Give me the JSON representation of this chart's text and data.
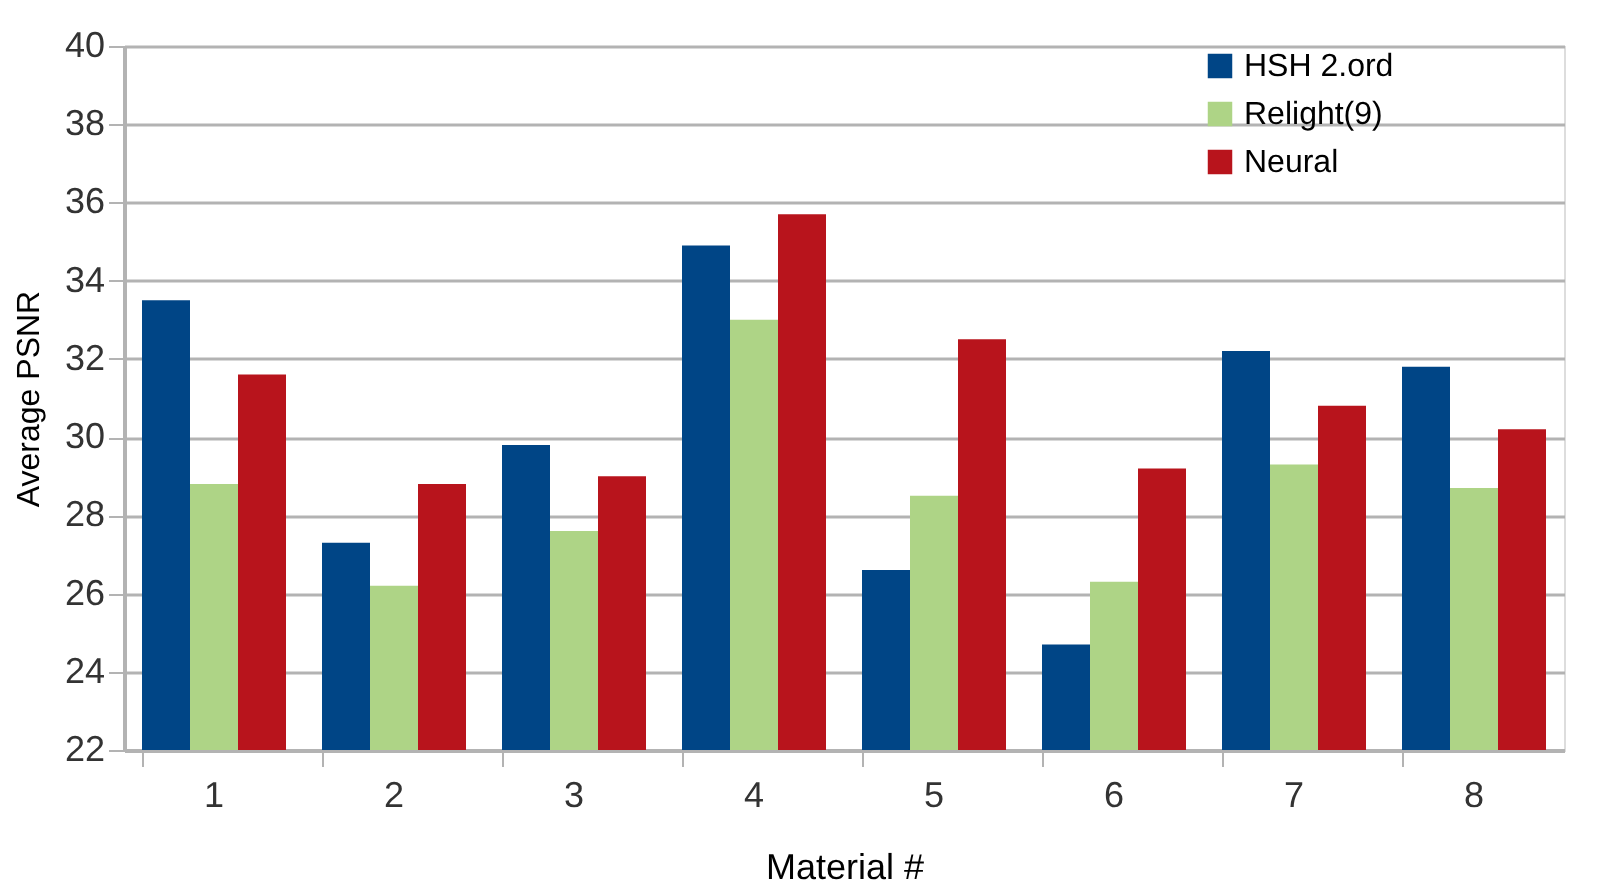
{
  "chart_data": {
    "type": "bar",
    "xlabel": "Material #",
    "ylabel": "Average PSNR",
    "categories": [
      "1",
      "2",
      "3",
      "4",
      "5",
      "6",
      "7",
      "8"
    ],
    "series": [
      {
        "name": "HSH 2.ord",
        "color": "#004586",
        "values": [
          33.5,
          27.3,
          29.8,
          34.9,
          26.6,
          24.7,
          32.2,
          31.8
        ]
      },
      {
        "name": "Relight(9)",
        "color": "#aed486",
        "values": [
          28.8,
          26.2,
          27.6,
          33.0,
          28.5,
          26.3,
          29.3,
          28.7
        ]
      },
      {
        "name": "Neural",
        "color": "#b8141c",
        "values": [
          31.6,
          28.8,
          29.0,
          35.7,
          32.5,
          29.2,
          30.8,
          30.2
        ]
      }
    ],
    "ylim": [
      22,
      40
    ],
    "yticks": [
      22,
      24,
      26,
      28,
      30,
      32,
      34,
      36,
      38,
      40
    ],
    "grid": "y",
    "legend": "top right"
  }
}
